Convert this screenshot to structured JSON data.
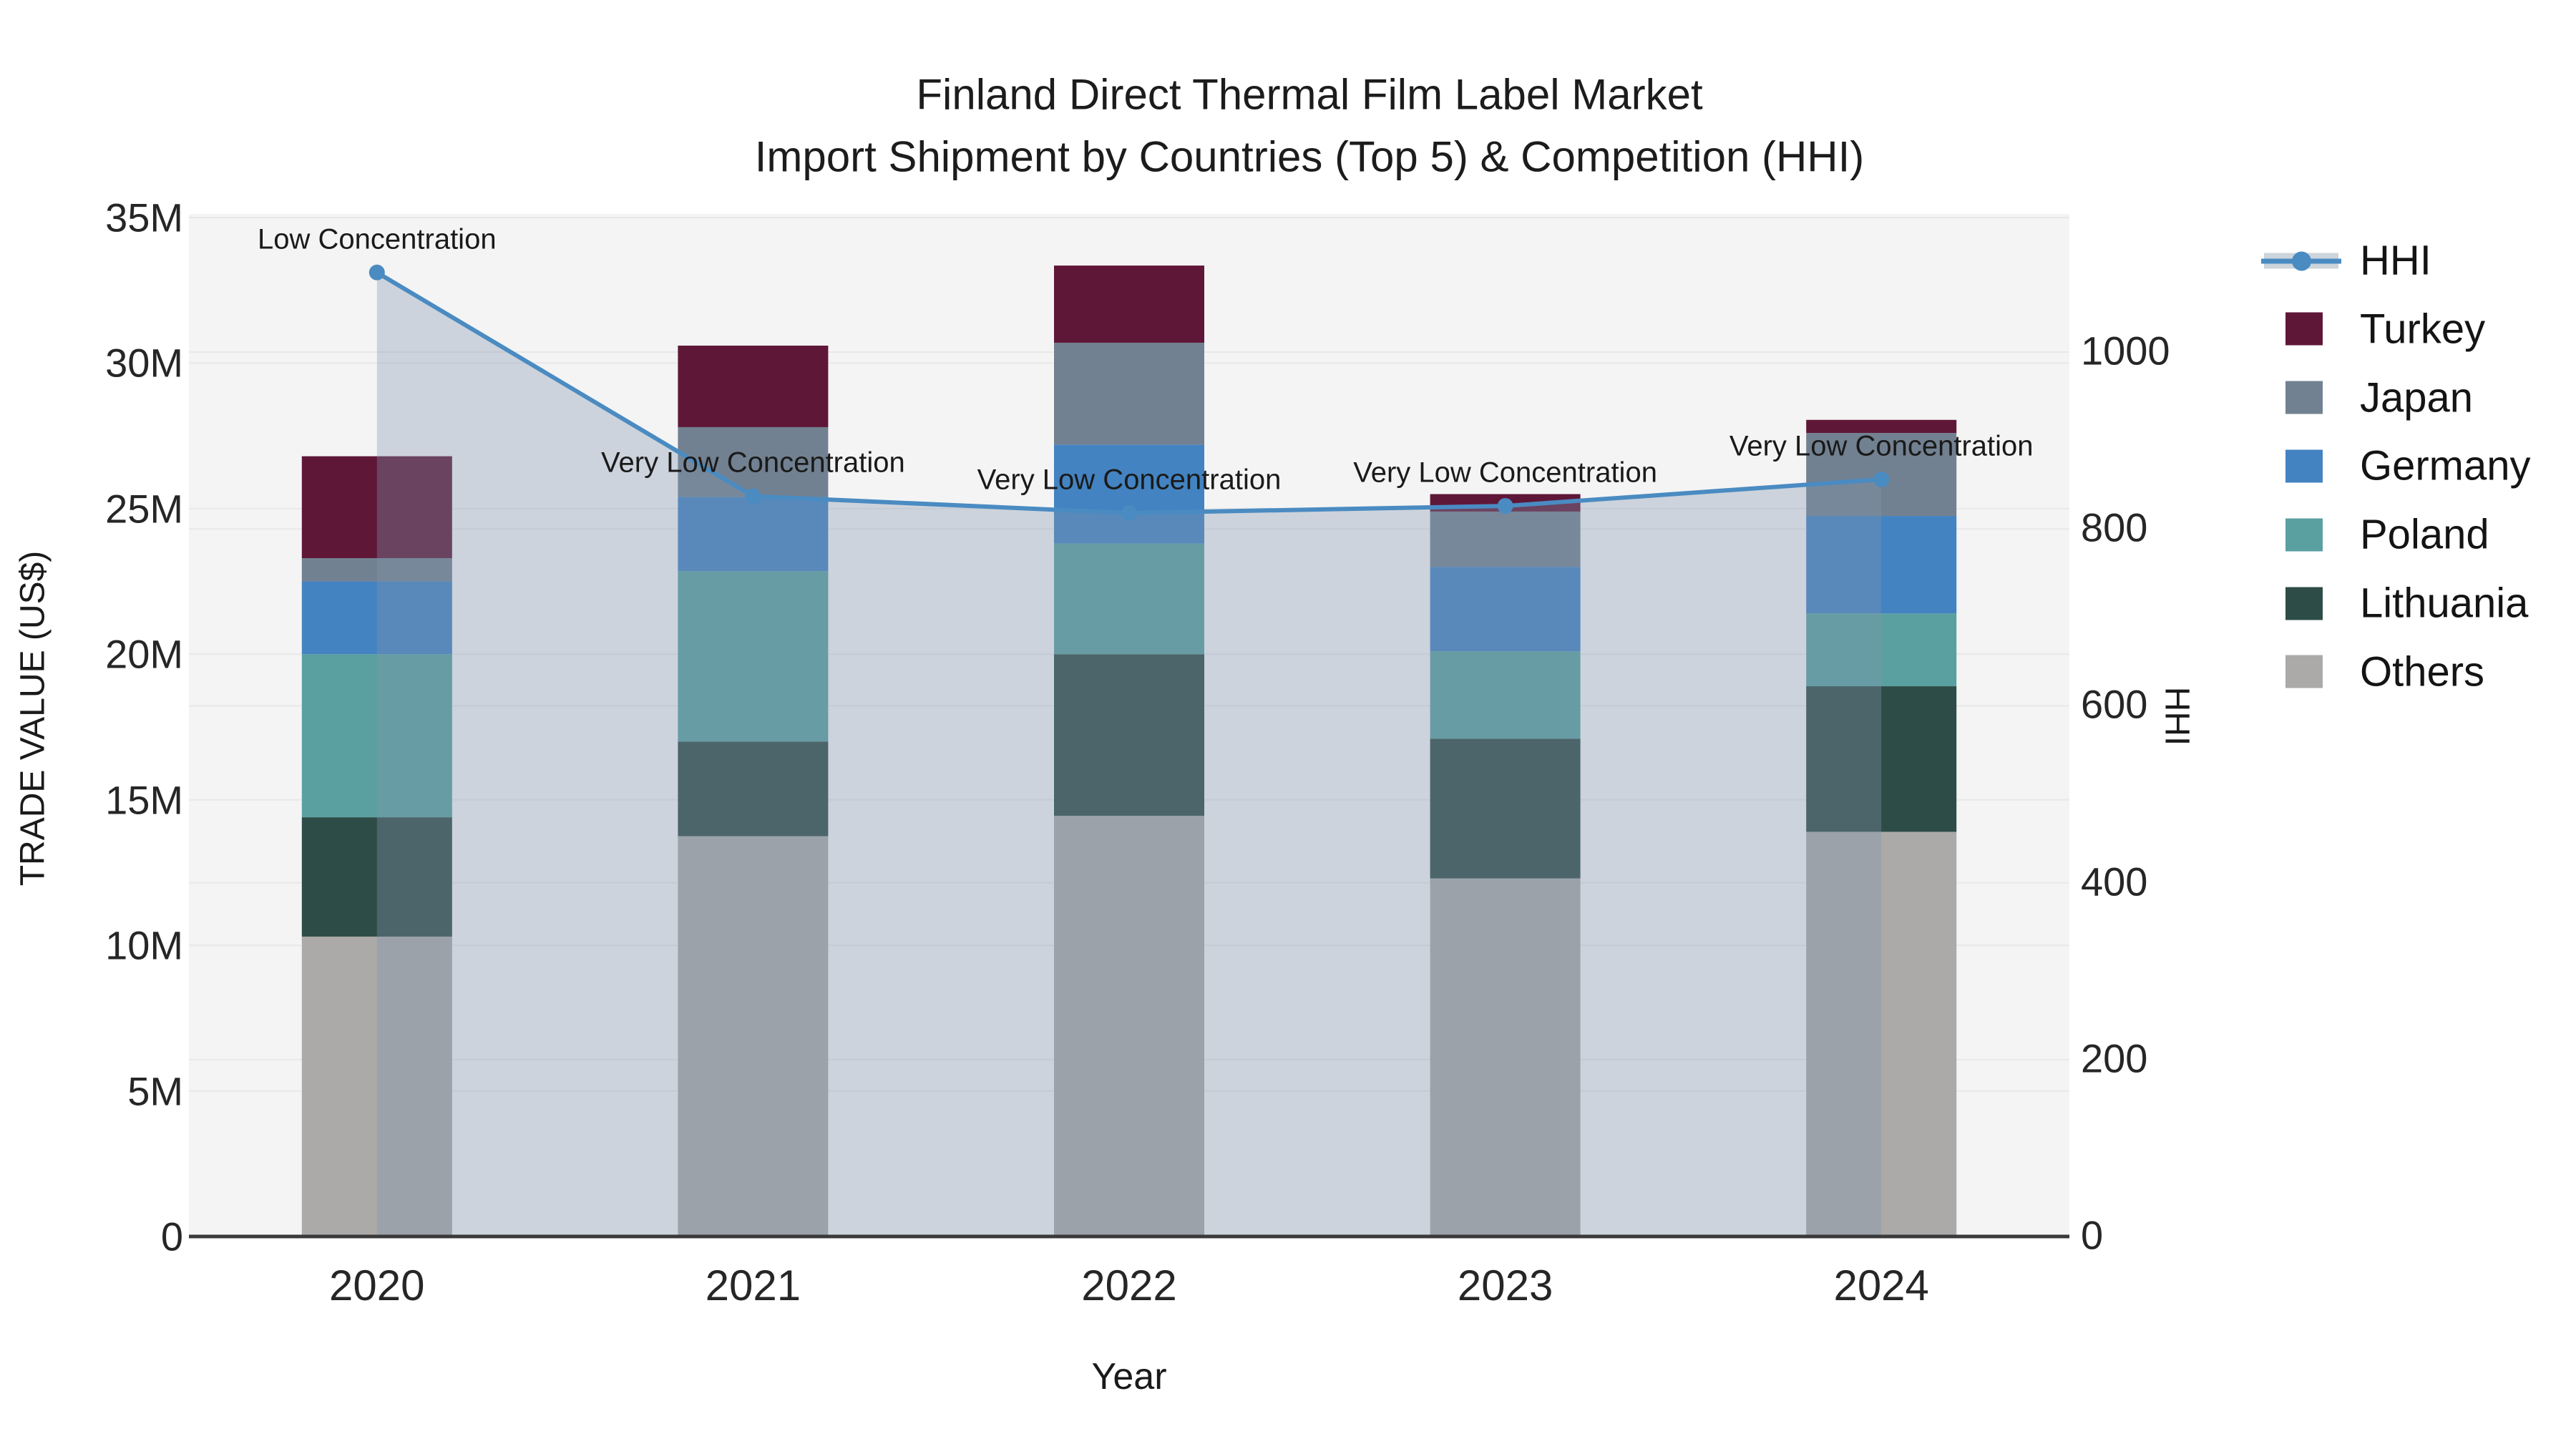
{
  "title": {
    "line1": "Finland Direct Thermal Film Label Market",
    "line2": "Import Shipment by Countries (Top 5) & Competition (HHI)"
  },
  "axes": {
    "left": {
      "title": "TRADE VALUE (US$)",
      "tick_labels": [
        "0",
        "5M",
        "10M",
        "15M",
        "20M",
        "25M",
        "30M",
        "35M"
      ],
      "tick_values_m": [
        0,
        5,
        10,
        15,
        20,
        25,
        30,
        35
      ]
    },
    "right": {
      "title": "HHI",
      "tick_labels": [
        "0",
        "200",
        "400",
        "600",
        "800",
        "1000"
      ],
      "tick_values": [
        0,
        200,
        400,
        600,
        800,
        1000
      ]
    },
    "x": {
      "title": "Year",
      "categories": [
        "2020",
        "2021",
        "2022",
        "2023",
        "2024"
      ]
    }
  },
  "legend": {
    "items": [
      {
        "label": "HHI",
        "type": "line",
        "color": "#4A8BC2"
      },
      {
        "label": "Turkey",
        "type": "swatch",
        "color": "#5F1737"
      },
      {
        "label": "Japan",
        "type": "swatch",
        "color": "#728191"
      },
      {
        "label": "Germany",
        "type": "swatch",
        "color": "#4383C1"
      },
      {
        "label": "Poland",
        "type": "swatch",
        "color": "#5AA0A0"
      },
      {
        "label": "Lithuania",
        "type": "swatch",
        "color": "#2E4C47"
      },
      {
        "label": "Others",
        "type": "swatch",
        "color": "#ABAAA8"
      }
    ]
  },
  "annotations": [
    {
      "year": "2020",
      "text": "Low Concentration"
    },
    {
      "year": "2021",
      "text": "Very Low Concentration"
    },
    {
      "year": "2022",
      "text": "Very Low Concentration"
    },
    {
      "year": "2023",
      "text": "Very Low Concentration"
    },
    {
      "year": "2024",
      "text": "Very Low Concentration"
    }
  ],
  "chart_data": {
    "type": "combo-stacked-bar-line",
    "categories": [
      "2020",
      "2021",
      "2022",
      "2023",
      "2024"
    ],
    "bar_unit": "million US$",
    "bar_series": [
      {
        "name": "Others",
        "color": "#ABAAA8",
        "values": [
          10.3,
          13.75,
          14.45,
          12.3,
          13.9
        ]
      },
      {
        "name": "Lithuania",
        "color": "#2E4C47",
        "values": [
          4.1,
          3.25,
          5.55,
          4.8,
          5.0
        ]
      },
      {
        "name": "Poland",
        "color": "#5AA0A0",
        "values": [
          5.6,
          5.85,
          3.8,
          3.0,
          2.5
        ]
      },
      {
        "name": "Germany",
        "color": "#4383C1",
        "values": [
          2.5,
          2.55,
          3.4,
          2.9,
          3.35
        ]
      },
      {
        "name": "Japan",
        "color": "#728191",
        "values": [
          0.8,
          2.4,
          3.5,
          1.9,
          2.85
        ]
      },
      {
        "name": "Turkey",
        "color": "#5F1737",
        "values": [
          3.5,
          2.8,
          2.65,
          0.6,
          0.45
        ]
      }
    ],
    "bar_totals_m": [
      26.8,
      30.6,
      33.35,
      25.5,
      28.05
    ],
    "line_series": {
      "name": "HHI",
      "axis": "right",
      "color": "#4A8BC2",
      "area_fill": "rgba(130,150,175,0.35)",
      "values": [
        1090,
        837,
        818,
        826,
        856
      ]
    },
    "ylim_left_m": [
      0,
      35
    ],
    "ylim_right": [
      0,
      1160
    ],
    "xlabel": "Year",
    "ylabel_left": "TRADE VALUE (US$)",
    "ylabel_right": "HHI",
    "grid": true,
    "legend_position": "right"
  },
  "colors": {
    "plot_bg": "#F4F4F4",
    "gridline": "#E8E8E8",
    "axis_line": "#3A3A3A",
    "hhi_line": "#4A8BC2",
    "area_fill": "rgba(130,150,175,0.35)",
    "legend_band": "#CCD4DC",
    "text": "#1A1A1A"
  }
}
